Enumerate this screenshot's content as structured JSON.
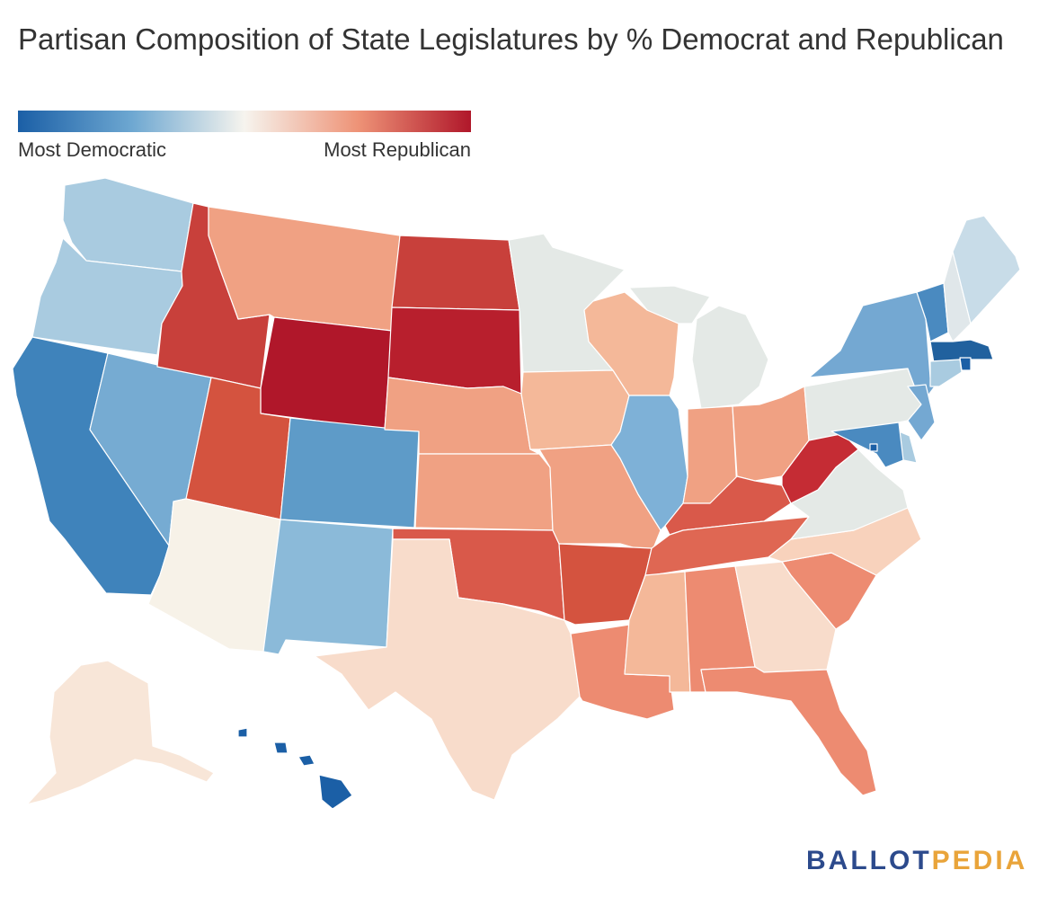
{
  "title": "Partisan Composition of State Legislatures by % Democrat and Republican",
  "legend": {
    "left_label": "Most Democratic",
    "right_label": "Most Republican",
    "gradient_colors": [
      "#1b5fa6",
      "#6da7d1",
      "#f6f4ee",
      "#ee9377",
      "#b0172a"
    ]
  },
  "logo": {
    "part1": "BALLOT",
    "part2": "PEDIA",
    "color1": "#2c4a8c",
    "color2": "#e9a43a"
  },
  "colors": {
    "WA": "#a9cbe0",
    "OR": "#a9cbe0",
    "CA": "#3f83bb",
    "NV": "#76abd2",
    "ID": "#c8403b",
    "MT": "#f0a183",
    "WY": "#b0172a",
    "UT": "#d4533f",
    "AZ": "#f7f2e8",
    "CO": "#5e9bc8",
    "NM": "#8bbad9",
    "ND": "#c8403b",
    "SD": "#b81f2d",
    "NE": "#f0a183",
    "KS": "#f0a183",
    "OK": "#d9594a",
    "TX": "#f8dccb",
    "MN": "#e4e9e6",
    "IA": "#f4b899",
    "MO": "#f0a183",
    "AR": "#d4533f",
    "LA": "#ed8b71",
    "WI": "#f4b899",
    "IL": "#7eb1d7",
    "MI": "#e4e9e6",
    "IN": "#f0a183",
    "OH": "#f0a183",
    "KY": "#d9594a",
    "TN": "#df6753",
    "MS": "#f4b899",
    "AL": "#ed8b71",
    "GA": "#f8dccb",
    "FL": "#ed8b71",
    "SC": "#ed8b71",
    "NC": "#f8d2bc",
    "VA": "#e4e9e6",
    "WV": "#c52c34",
    "PA": "#e4e9e6",
    "NY": "#74a8d2",
    "VT": "#4a8ac0",
    "NH": "#e0e7ea",
    "ME": "#c8dce8",
    "MA": "#21619e",
    "RI": "#1b5fa6",
    "CT": "#a9cbe0",
    "NJ": "#74a8d2",
    "DE": "#a9cbe0",
    "MD": "#4a8ac0",
    "DC": "#1b5fa6",
    "AK": "#f8e6d8",
    "HI": "#1b5fa6"
  }
}
